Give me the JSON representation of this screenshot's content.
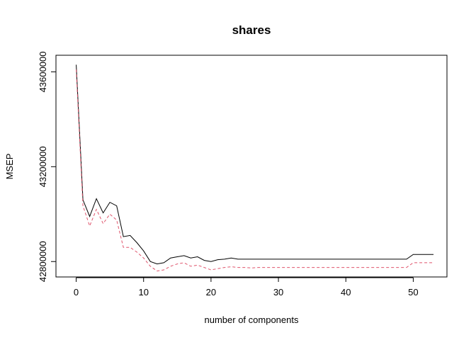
{
  "chart_data": {
    "type": "line",
    "title": "shares",
    "xlabel": "number of components",
    "ylabel": "MSEP",
    "xlim": [
      -3,
      55
    ],
    "ylim": [
      42735000,
      43670000
    ],
    "xticks": [
      0,
      10,
      20,
      30,
      40,
      50
    ],
    "yticks": [
      42800000,
      43200000,
      43600000
    ],
    "xtick_labels": [
      "0",
      "10",
      "20",
      "30",
      "40",
      "50"
    ],
    "ytick_labels": [
      "42800000",
      "43200000",
      "43600000"
    ],
    "grid": false,
    "legend": "none",
    "series": [
      {
        "style": "solid",
        "color": "#000000",
        "x": [
          0,
          1,
          2,
          3,
          4,
          5,
          6,
          7,
          8,
          9,
          10,
          11,
          12,
          13,
          14,
          15,
          16,
          17,
          18,
          19,
          20,
          21,
          22,
          23,
          24,
          25,
          26,
          27,
          28,
          29,
          30,
          31,
          32,
          33,
          34,
          35,
          36,
          37,
          38,
          39,
          40,
          41,
          42,
          43,
          44,
          45,
          46,
          47,
          48,
          49,
          50,
          51,
          52,
          53
        ],
        "y": [
          43630000,
          43060000,
          42990000,
          43065000,
          43005000,
          43050000,
          43035000,
          42905000,
          42910000,
          42880000,
          42845000,
          42800000,
          42790000,
          42795000,
          42815000,
          42820000,
          42825000,
          42815000,
          42820000,
          42805000,
          42800000,
          42808000,
          42810000,
          42815000,
          42810000,
          42810000,
          42810000,
          42810000,
          42810000,
          42810000,
          42810000,
          42810000,
          42810000,
          42810000,
          42810000,
          42810000,
          42810000,
          42810000,
          42810000,
          42810000,
          42810000,
          42810000,
          42810000,
          42810000,
          42810000,
          42810000,
          42810000,
          42810000,
          42810000,
          42810000,
          42830000,
          42830000,
          42830000,
          42830000
        ]
      },
      {
        "style": "dashed",
        "color": "#DF536B",
        "x": [
          0,
          1,
          2,
          3,
          4,
          5,
          6,
          7,
          8,
          9,
          10,
          11,
          12,
          13,
          14,
          15,
          16,
          17,
          18,
          19,
          20,
          21,
          22,
          23,
          24,
          25,
          26,
          27,
          28,
          29,
          30,
          31,
          32,
          33,
          34,
          35,
          36,
          37,
          38,
          39,
          40,
          41,
          42,
          43,
          44,
          45,
          46,
          47,
          48,
          49,
          50,
          51,
          52,
          53
        ],
        "y": [
          43610000,
          43035000,
          42950000,
          43020000,
          42960000,
          43000000,
          42975000,
          42860000,
          42860000,
          42840000,
          42815000,
          42780000,
          42760000,
          42765000,
          42780000,
          42790000,
          42795000,
          42780000,
          42785000,
          42775000,
          42765000,
          42770000,
          42775000,
          42778000,
          42775000,
          42775000,
          42773000,
          42775000,
          42775000,
          42775000,
          42775000,
          42775000,
          42775000,
          42775000,
          42775000,
          42775000,
          42775000,
          42775000,
          42775000,
          42775000,
          42775000,
          42775000,
          42775000,
          42775000,
          42775000,
          42775000,
          42775000,
          42775000,
          42775000,
          42775000,
          42795000,
          42795000,
          42795000,
          42795000
        ]
      }
    ]
  }
}
